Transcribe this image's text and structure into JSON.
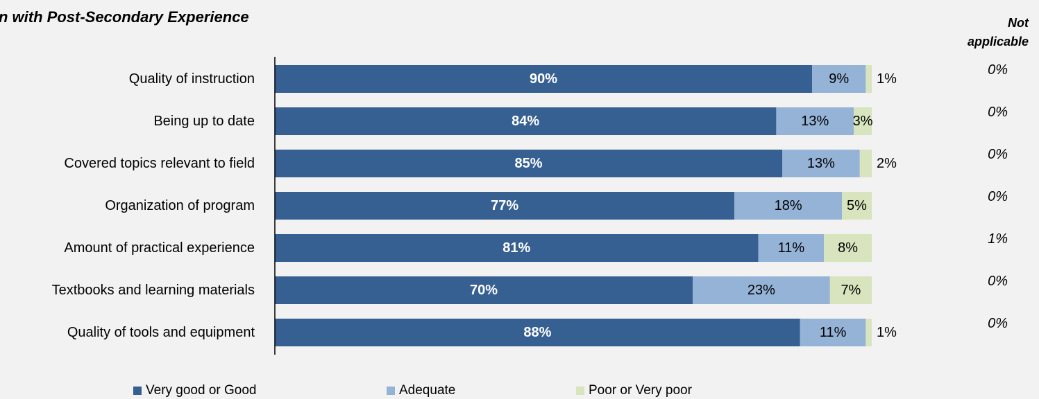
{
  "title": "n with Post-Secondary Experience",
  "na_header": "Not applicable",
  "colors": {
    "very_good": "#376092",
    "adequate": "#95b3d7",
    "poor": "#d7e4bd",
    "axis": "#000000"
  },
  "chart_data": {
    "type": "bar",
    "orientation": "horizontal",
    "stacked": true,
    "xlim": [
      0,
      100
    ],
    "categories": [
      "Quality of instruction",
      "Being up to date",
      "Covered topics relevant to field",
      "Organization of program",
      "Amount of practical experience",
      "Textbooks and learning materials",
      "Quality of tools and equipment"
    ],
    "series": [
      {
        "name": "Very good or Good",
        "values": [
          90,
          84,
          85,
          77,
          81,
          70,
          88
        ],
        "labels": [
          "90%",
          "84%",
          "85%",
          "77%",
          "81%",
          "70%",
          "88%"
        ]
      },
      {
        "name": "Adequate",
        "values": [
          9,
          13,
          13,
          18,
          11,
          23,
          11
        ],
        "labels": [
          "9%",
          "13%",
          "13%",
          "18%",
          "11%",
          "23%",
          "11%"
        ]
      },
      {
        "name": "Poor or Very poor",
        "values": [
          1,
          3,
          2,
          5,
          8,
          7,
          1
        ],
        "labels": [
          "1%",
          "3%",
          "2%",
          "5%",
          "8%",
          "7%",
          "1%"
        ]
      }
    ],
    "not_applicable": [
      "0%",
      "0%",
      "0%",
      "0%",
      "1%",
      "0%",
      "0%"
    ],
    "legend": [
      "Very good or Good",
      "Adequate",
      "Poor or Very poor"
    ],
    "legend_position": "bottom"
  }
}
